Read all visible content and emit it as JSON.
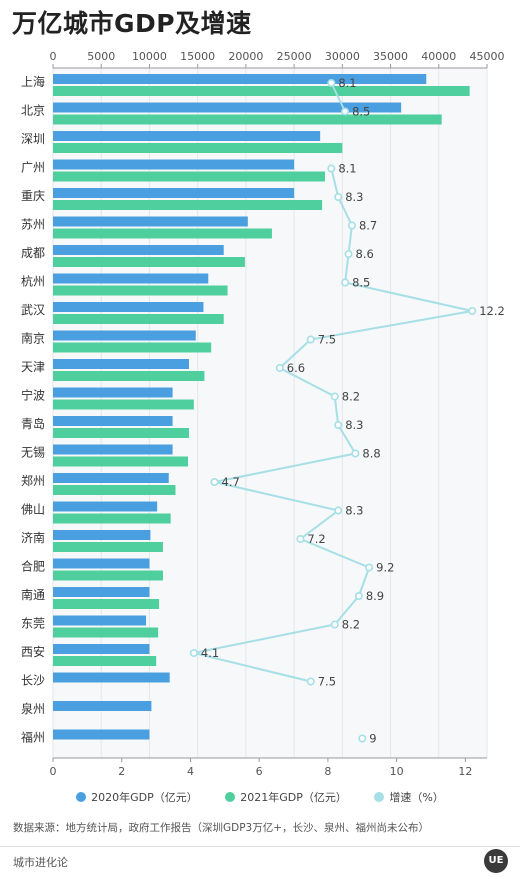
{
  "title": "万亿城市GDP及增速",
  "legend": {
    "items": [
      {
        "label": "2020年GDP（亿元）",
        "color": "#4a9fe0"
      },
      {
        "label": "2021年GDP（亿元）",
        "color": "#4fcf9e"
      },
      {
        "label": "增速（%）",
        "color": "#a6dfe6"
      }
    ]
  },
  "source": "数据来源：地方统计局，政府工作报告（深圳GDP3万亿+，长沙、泉州、福州尚未公布）",
  "brand": "城市进化论",
  "logo": "UE",
  "chart_data": {
    "type": "bar",
    "title": "万亿城市GDP及增速",
    "categories": [
      "上海",
      "北京",
      "深圳",
      "广州",
      "重庆",
      "苏州",
      "成都",
      "杭州",
      "武汉",
      "南京",
      "天津",
      "宁波",
      "青岛",
      "无锡",
      "郑州",
      "佛山",
      "济南",
      "合肥",
      "南通",
      "东莞",
      "西安",
      "长沙",
      "泉州",
      "福州"
    ],
    "series": [
      {
        "name": "2020年GDP（亿元）",
        "color": "#4a9fe0",
        "values": [
          38700,
          36100,
          27700,
          25000,
          25000,
          20200,
          17700,
          16100,
          15600,
          14800,
          14100,
          12400,
          12400,
          12400,
          12000,
          10800,
          10100,
          10000,
          10000,
          9650,
          10000,
          12100,
          10200,
          10000
        ]
      },
      {
        "name": "2021年GDP（亿元）",
        "color": "#4fcf9e",
        "values": [
          43200,
          40300,
          30000,
          28200,
          27900,
          22700,
          19900,
          18100,
          17700,
          16400,
          15700,
          14600,
          14100,
          14000,
          12700,
          12200,
          11400,
          11400,
          11000,
          10900,
          10700,
          null,
          null,
          null
        ]
      },
      {
        "name": "增速（%）",
        "color": "#a6dfe6",
        "axis": "bottom",
        "values": [
          8.1,
          8.5,
          null,
          8.1,
          8.3,
          8.7,
          8.6,
          8.5,
          12.2,
          7.5,
          6.6,
          8.2,
          8.3,
          8.8,
          4.7,
          8.3,
          7.2,
          9.2,
          8.9,
          8.2,
          4.1,
          7.5,
          null,
          9
        ]
      }
    ],
    "gdp_axis": {
      "ticks": [
        "0",
        "5000",
        "10000",
        "15000",
        "20000",
        "25000",
        "30000",
        "35000",
        "40000",
        "45000"
      ],
      "range": [
        0,
        45000
      ],
      "position": "top"
    },
    "growth_axis": {
      "ticks": [
        "0",
        "2",
        "4",
        "6",
        "8",
        "10",
        "12"
      ],
      "range": [
        0,
        12.63
      ],
      "position": "bottom"
    },
    "grid": true,
    "legend_position": "bottom"
  }
}
